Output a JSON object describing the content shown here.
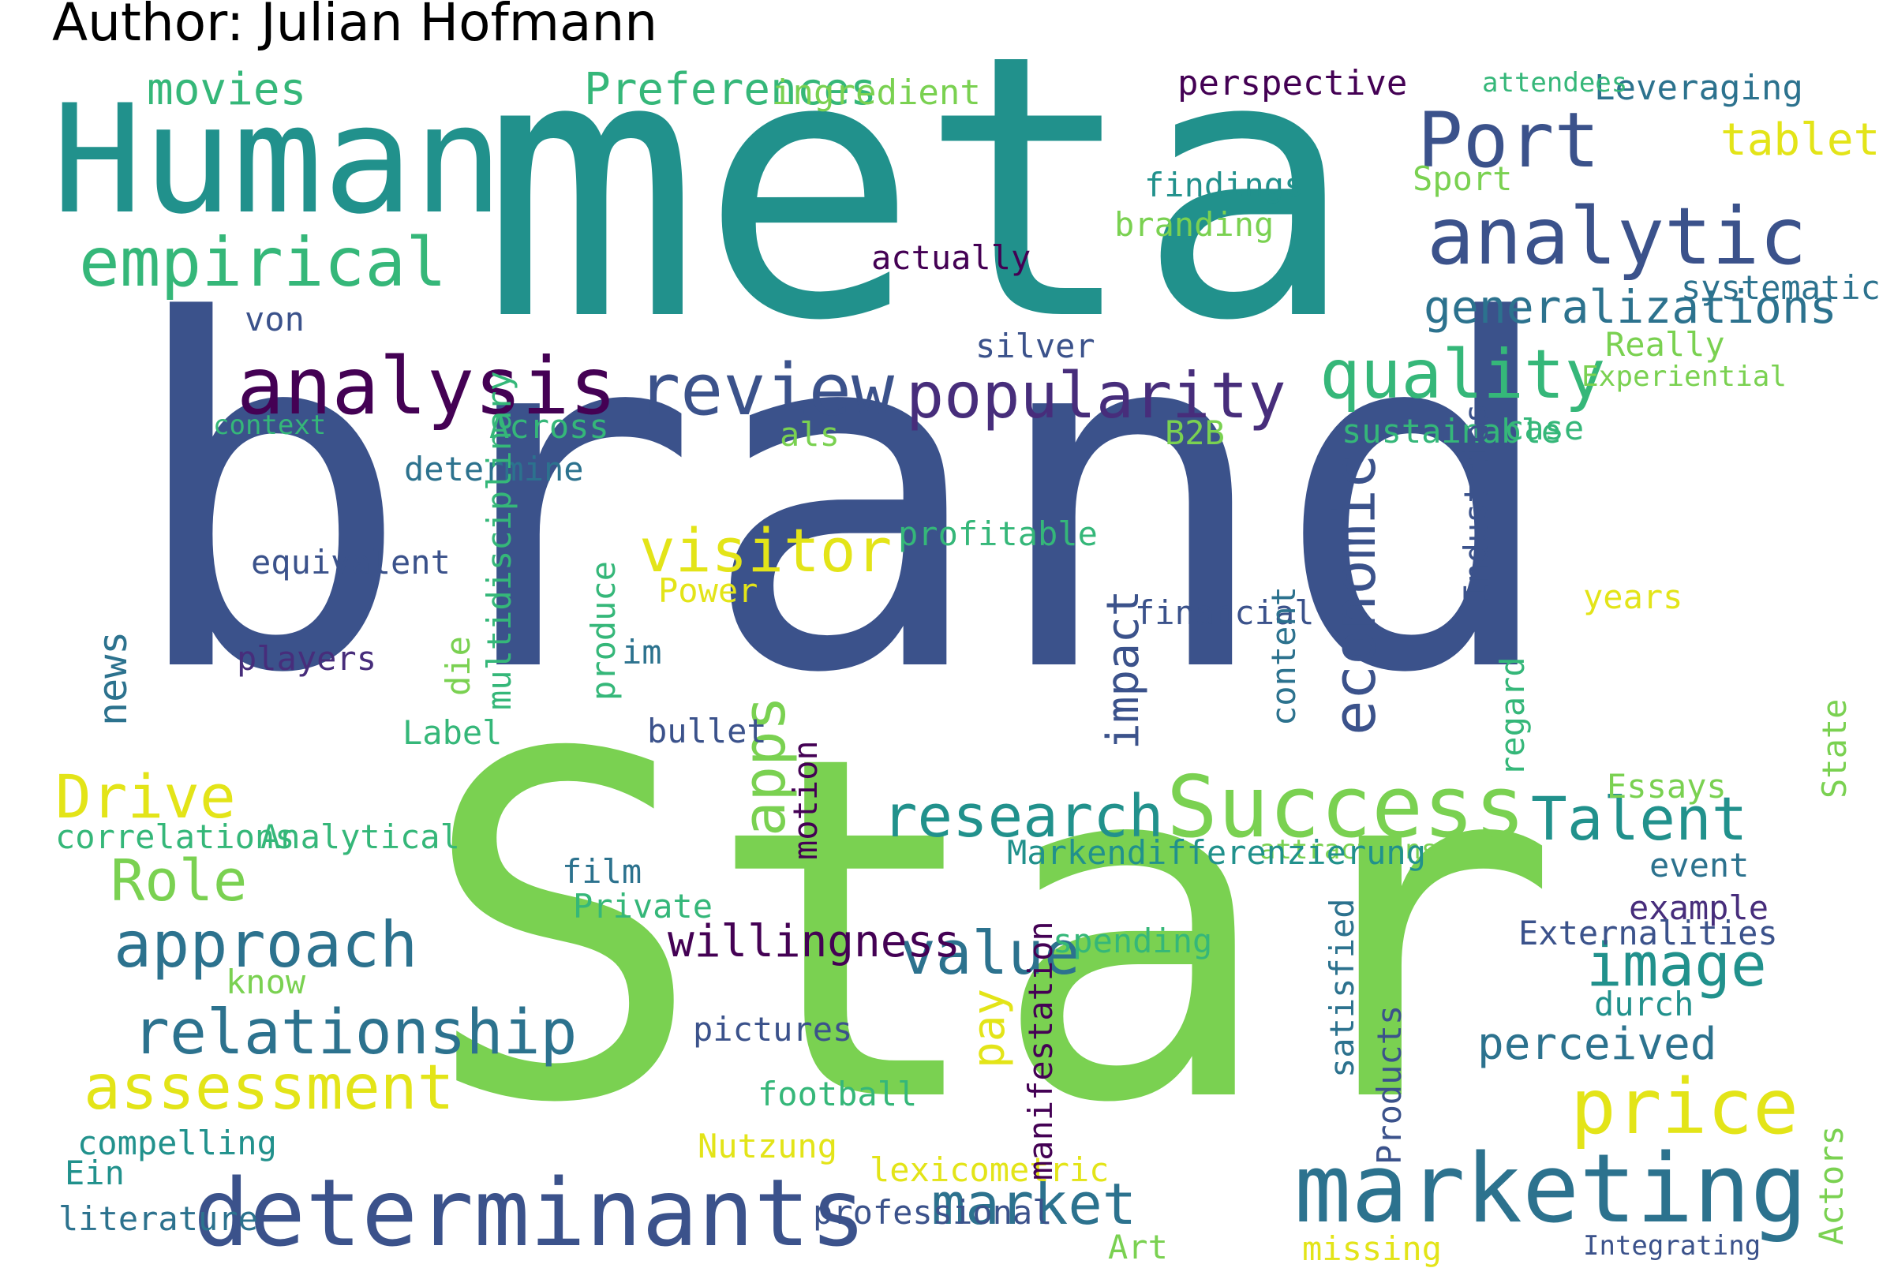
{
  "title": "Author: Julian Hofmann",
  "palette": {
    "navy": "#3b528b",
    "teal": "#21918c",
    "green": "#7ad151",
    "purple": "#440154",
    "yellow": "#e3e418",
    "dteal": "#2c728e",
    "lgreen": "#35b779",
    "indigo": "#472d7b"
  },
  "words": [
    "brand",
    "Star",
    "meta",
    "Human",
    "determinants",
    "marketing",
    "Success",
    "analytic",
    "analysis",
    "review",
    "popularity",
    "empirical",
    "Port",
    "quality",
    "approach",
    "relationship",
    "visitor",
    "price",
    "Drive",
    "assessment",
    "Talent",
    "image",
    "research",
    "value",
    "market",
    "Role",
    "perceived",
    "movies",
    "Preferences",
    "generalizations",
    "willingness",
    "tablet",
    "economic",
    "apps",
    "impact",
    "pay",
    "news",
    "ingredient",
    "perspective",
    "Leveraging",
    "attendees",
    "findings",
    "Sport",
    "branding",
    "actually",
    "systematic",
    "von",
    "silver",
    "Really",
    "Experiential",
    "context",
    "Across",
    "als",
    "B2B",
    "sustainable",
    "case",
    "determine",
    "profitable",
    "equivalent",
    "Power",
    "years",
    "financial",
    "players",
    "im",
    "Label",
    "bullet",
    "Essays",
    "correlations",
    "Analytical",
    "attractions",
    "Markendifferenzierung",
    "event",
    "film",
    "Private",
    "example",
    "spending",
    "Externalities",
    "know",
    "durch",
    "pictures",
    "football",
    "compelling",
    "Nutzung",
    "Ein",
    "lexicometric",
    "literature",
    "professional",
    "Art",
    "missing",
    "Integrating",
    "Industries",
    "die",
    "multidisciplinary",
    "produce",
    "motion",
    "content",
    "regard",
    "State",
    "satisfied",
    "manifestation",
    "Products",
    "Actors"
  ]
}
